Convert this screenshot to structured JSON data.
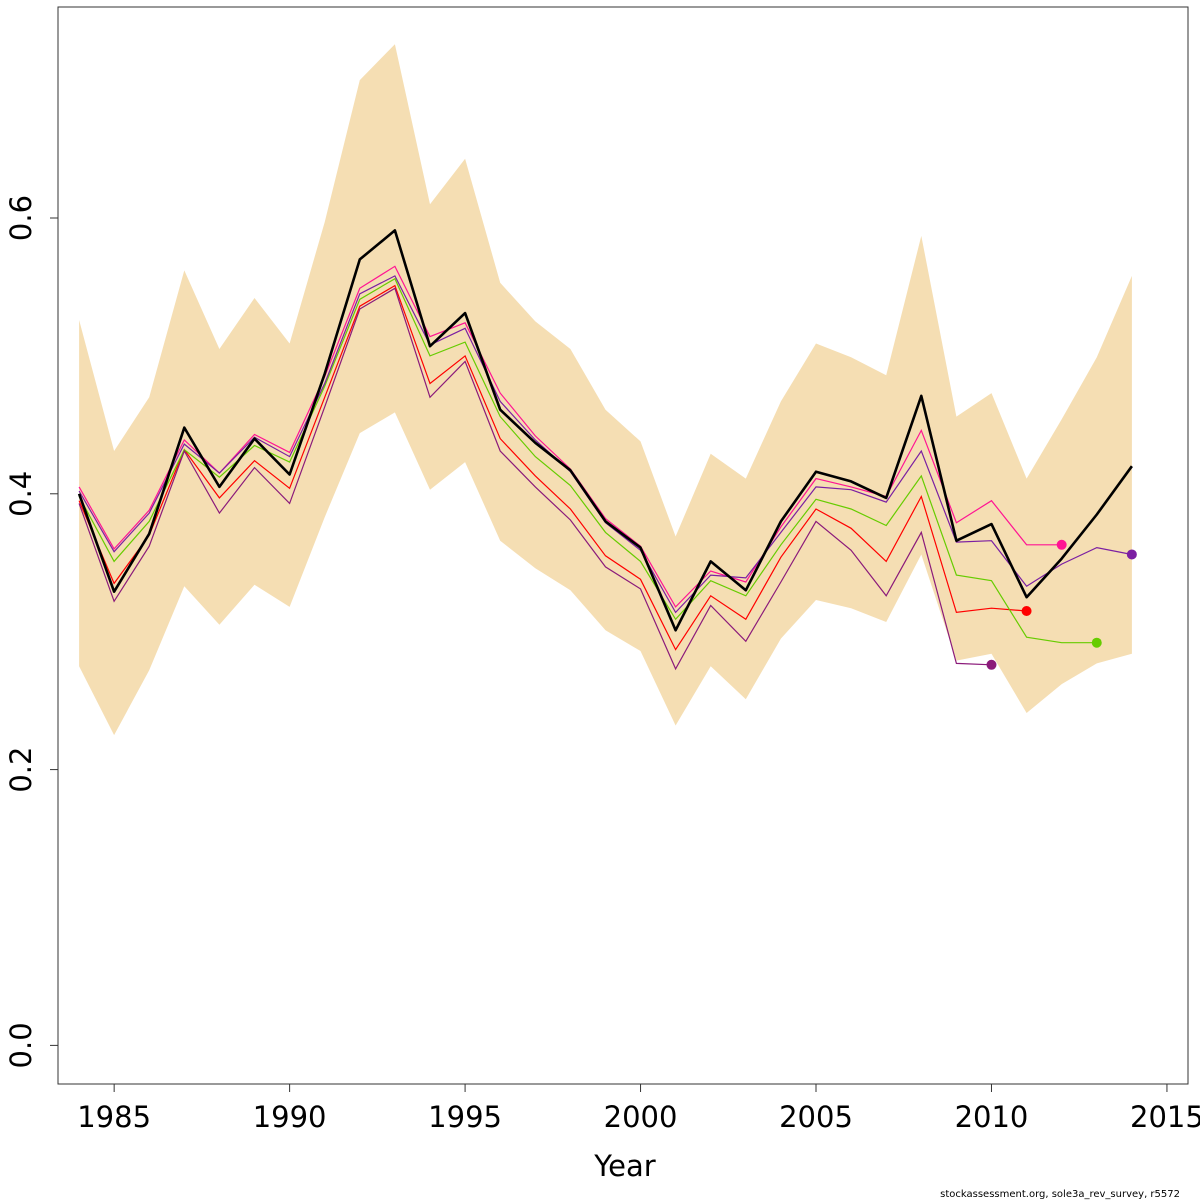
{
  "chart_data": {
    "type": "line",
    "title": "",
    "xlabel": "Year",
    "ylabel": "",
    "xlim": [
      1983.4,
      2015.6
    ],
    "ylim": [
      -0.028,
      0.753
    ],
    "x_ticks": [
      "1985",
      "1990",
      "1995",
      "2000",
      "2005",
      "2010",
      "2015"
    ],
    "y_ticks": [
      "0.0",
      "0.2",
      "0.4",
      "0.6"
    ],
    "grid": false,
    "legend": "none",
    "credit": "stockassessment.org, sole3a_rev_survey, r5572",
    "confidence_band": {
      "color": "#F5DEB3",
      "x": [
        1984,
        1985,
        1986,
        1987,
        1988,
        1989,
        1990,
        1991,
        1992,
        1993,
        1994,
        1995,
        1996,
        1997,
        1998,
        1999,
        2000,
        2001,
        2002,
        2003,
        2004,
        2005,
        2006,
        2007,
        2008,
        2009,
        2010,
        2011,
        2012,
        2013,
        2014
      ],
      "lower": [
        0.275,
        0.225,
        0.272,
        0.333,
        0.305,
        0.334,
        0.318,
        0.383,
        0.444,
        0.459,
        0.403,
        0.423,
        0.366,
        0.346,
        0.33,
        0.301,
        0.286,
        0.232,
        0.275,
        0.251,
        0.295,
        0.323,
        0.317,
        0.307,
        0.356,
        0.279,
        0.284,
        0.241,
        0.262,
        0.277,
        0.284
      ],
      "upper": [
        0.526,
        0.431,
        0.47,
        0.562,
        0.505,
        0.542,
        0.509,
        0.597,
        0.7,
        0.726,
        0.61,
        0.643,
        0.553,
        0.525,
        0.505,
        0.461,
        0.438,
        0.369,
        0.429,
        0.411,
        0.467,
        0.509,
        0.499,
        0.486,
        0.587,
        0.456,
        0.473,
        0.411,
        0.454,
        0.499,
        0.558
      ]
    },
    "main_series": {
      "color": "#000000",
      "x": [
        1984,
        1985,
        1986,
        1987,
        1988,
        1989,
        1990,
        1991,
        1992,
        1993,
        1994,
        1995,
        1996,
        1997,
        1998,
        1999,
        2000,
        2001,
        2002,
        2003,
        2004,
        2005,
        2006,
        2007,
        2008,
        2009,
        2010,
        2011,
        2012,
        2013,
        2014
      ],
      "values": [
        0.4,
        0.329,
        0.371,
        0.448,
        0.405,
        0.44,
        0.414,
        0.487,
        0.57,
        0.591,
        0.507,
        0.531,
        0.461,
        0.437,
        0.417,
        0.38,
        0.361,
        0.301,
        0.351,
        0.33,
        0.38,
        0.416,
        0.409,
        0.397,
        0.471,
        0.366,
        0.378,
        0.325,
        0.353,
        0.385,
        0.42
      ]
    },
    "retro_series": [
      {
        "color": "#FF1493",
        "x": [
          1984,
          1985,
          1986,
          1987,
          1988,
          1989,
          1990,
          1991,
          1992,
          1993,
          1994,
          1995,
          1996,
          1997,
          1998,
          1999,
          2000,
          2001,
          2002,
          2003,
          2004,
          2005,
          2006,
          2007,
          2008,
          2009,
          2010,
          2011,
          2012
        ],
        "values": [
          0.405,
          0.36,
          0.388,
          0.439,
          0.415,
          0.443,
          0.43,
          0.485,
          0.549,
          0.565,
          0.514,
          0.524,
          0.473,
          0.442,
          0.418,
          0.382,
          0.362,
          0.318,
          0.344,
          0.336,
          0.376,
          0.411,
          0.405,
          0.398,
          0.446,
          0.379,
          0.395,
          0.363,
          0.363
        ]
      },
      {
        "color": "#FF0000",
        "x": [
          1984,
          1985,
          1986,
          1987,
          1988,
          1989,
          1990,
          1991,
          1992,
          1993,
          1994,
          1995,
          1996,
          1997,
          1998,
          1999,
          2000,
          2001,
          2002,
          2003,
          2004,
          2005,
          2006,
          2007,
          2008,
          2009,
          2010,
          2011
        ],
        "values": [
          0.395,
          0.335,
          0.37,
          0.432,
          0.397,
          0.424,
          0.404,
          0.47,
          0.536,
          0.551,
          0.48,
          0.5,
          0.44,
          0.413,
          0.389,
          0.355,
          0.338,
          0.287,
          0.326,
          0.309,
          0.354,
          0.389,
          0.375,
          0.351,
          0.398,
          0.314,
          0.317,
          0.315
        ]
      },
      {
        "color": "#66CC00",
        "x": [
          1984,
          1985,
          1986,
          1987,
          1988,
          1989,
          1990,
          1991,
          1992,
          1993,
          1994,
          1995,
          1996,
          1997,
          1998,
          1999,
          2000,
          2001,
          2002,
          2003,
          2004,
          2005,
          2006,
          2007,
          2008,
          2009,
          2010,
          2011,
          2012,
          2013
        ],
        "values": [
          0.398,
          0.351,
          0.38,
          0.432,
          0.412,
          0.435,
          0.423,
          0.478,
          0.541,
          0.556,
          0.5,
          0.51,
          0.456,
          0.427,
          0.406,
          0.372,
          0.351,
          0.309,
          0.337,
          0.326,
          0.363,
          0.396,
          0.389,
          0.377,
          0.413,
          0.341,
          0.337,
          0.296,
          0.292,
          0.292
        ]
      },
      {
        "color": "#8B1A7A",
        "x": [
          1984,
          1985,
          1986,
          1987,
          1988,
          1989,
          1990,
          1991,
          1992,
          1993,
          1994,
          1995,
          1996,
          1997,
          1998,
          1999,
          2000,
          2001,
          2002,
          2003,
          2004,
          2005,
          2006,
          2007,
          2008,
          2009,
          2010
        ],
        "values": [
          0.393,
          0.322,
          0.362,
          0.431,
          0.386,
          0.419,
          0.393,
          0.463,
          0.534,
          0.549,
          0.47,
          0.496,
          0.431,
          0.405,
          0.381,
          0.347,
          0.331,
          0.273,
          0.319,
          0.293,
          0.336,
          0.38,
          0.359,
          0.326,
          0.372,
          0.277,
          0.276
        ]
      },
      {
        "color": "#7B1FA2",
        "x": [
          1984,
          1985,
          1986,
          1987,
          1988,
          1989,
          1990,
          1991,
          1992,
          1993,
          1994,
          1995,
          1996,
          1997,
          1998,
          1999,
          2000,
          2001,
          2002,
          2003,
          2004,
          2005,
          2006,
          2007,
          2008,
          2009,
          2010,
          2011,
          2012,
          2013,
          2014
        ],
        "values": [
          0.402,
          0.358,
          0.386,
          0.436,
          0.415,
          0.441,
          0.427,
          0.48,
          0.545,
          0.558,
          0.508,
          0.52,
          0.467,
          0.439,
          0.416,
          0.379,
          0.359,
          0.314,
          0.341,
          0.339,
          0.372,
          0.405,
          0.403,
          0.394,
          0.431,
          0.365,
          0.366,
          0.333,
          0.349,
          0.361,
          0.356
        ]
      }
    ]
  }
}
